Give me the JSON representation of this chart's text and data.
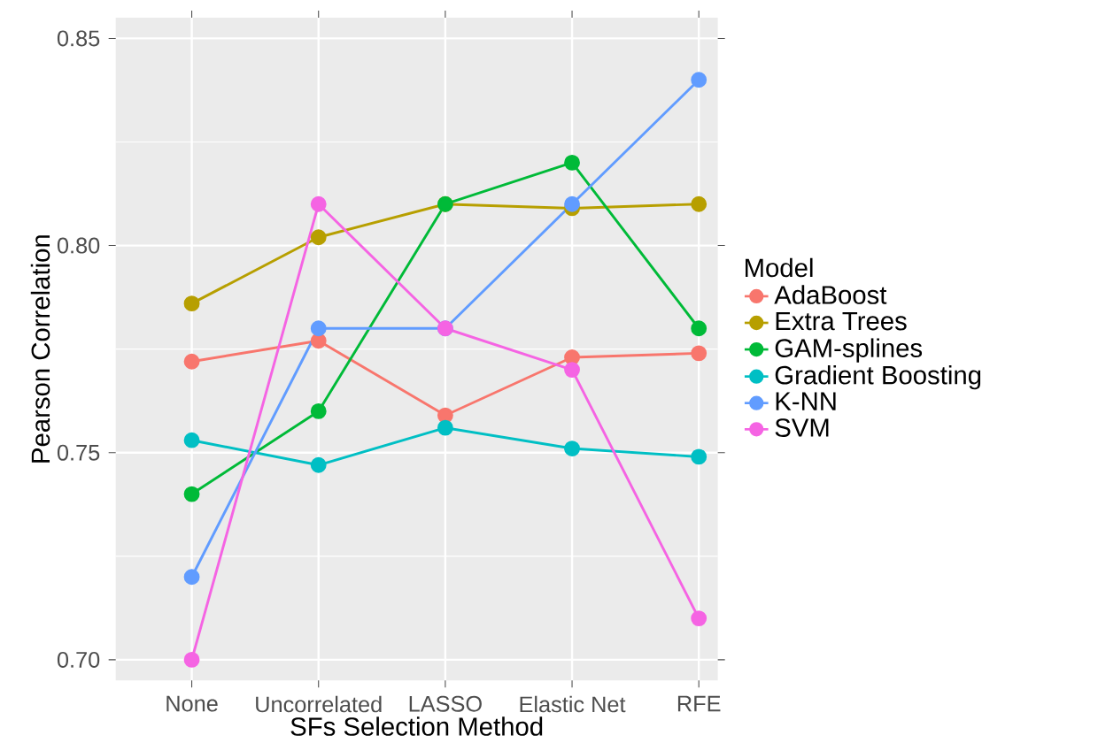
{
  "chart_data": {
    "type": "line",
    "xlabel": "SFs Selection Method",
    "ylabel": "Pearson Correlation",
    "legend_title": "Model",
    "categories": [
      "None",
      "Uncorrelated",
      "LASSO",
      "Elastic Net",
      "RFE"
    ],
    "series": [
      {
        "name": "AdaBoost",
        "color": "#F8766D",
        "values": [
          0.772,
          0.777,
          0.759,
          0.773,
          0.774
        ]
      },
      {
        "name": "Extra Trees",
        "color": "#B79F00",
        "values": [
          0.786,
          0.802,
          0.81,
          0.809,
          0.81
        ]
      },
      {
        "name": "GAM-splines",
        "color": "#00BA38",
        "values": [
          0.74,
          0.76,
          0.81,
          0.82,
          0.78
        ]
      },
      {
        "name": "Gradient Boosting",
        "color": "#00BFC4",
        "values": [
          0.753,
          0.747,
          0.756,
          0.751,
          0.749
        ]
      },
      {
        "name": "K-NN",
        "color": "#619CFF",
        "values": [
          0.72,
          0.78,
          0.78,
          0.81,
          0.84
        ]
      },
      {
        "name": "SVM",
        "color": "#F564E3",
        "values": [
          0.7,
          0.81,
          0.78,
          0.77,
          0.71
        ]
      }
    ],
    "ylim": [
      0.695,
      0.855
    ],
    "yticks": [
      {
        "value": 0.7,
        "label": "0.70"
      },
      {
        "value": 0.75,
        "label": "0.75"
      },
      {
        "value": 0.8,
        "label": "0.80"
      },
      {
        "value": 0.85,
        "label": "0.85"
      }
    ],
    "grid": true,
    "legend": "right",
    "marker": "circle",
    "line_style": "solid"
  }
}
